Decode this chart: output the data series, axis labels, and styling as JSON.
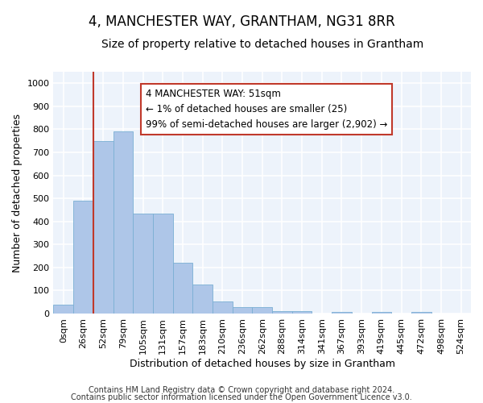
{
  "title": "4, MANCHESTER WAY, GRANTHAM, NG31 8RR",
  "subtitle": "Size of property relative to detached houses in Grantham",
  "xlabel": "Distribution of detached houses by size in Grantham",
  "ylabel": "Number of detached properties",
  "footnote1": "Contains HM Land Registry data © Crown copyright and database right 2024.",
  "footnote2": "Contains public sector information licensed under the Open Government Licence v3.0.",
  "bar_labels": [
    "0sqm",
    "26sqm",
    "52sqm",
    "79sqm",
    "105sqm",
    "131sqm",
    "157sqm",
    "183sqm",
    "210sqm",
    "236sqm",
    "262sqm",
    "288sqm",
    "314sqm",
    "341sqm",
    "367sqm",
    "393sqm",
    "419sqm",
    "445sqm",
    "472sqm",
    "498sqm",
    "524sqm"
  ],
  "bar_values": [
    40,
    490,
    750,
    790,
    435,
    435,
    220,
    125,
    52,
    27,
    28,
    10,
    10,
    0,
    8,
    0,
    6,
    0,
    6,
    0,
    0
  ],
  "bar_color": "#aec6e8",
  "bar_edgecolor": "#7aafd4",
  "ylim": [
    0,
    1050
  ],
  "yticks": [
    0,
    100,
    200,
    300,
    400,
    500,
    600,
    700,
    800,
    900,
    1000
  ],
  "property_line_color": "#c0392b",
  "annotation_text": "4 MANCHESTER WAY: 51sqm\n← 1% of detached houses are smaller (25)\n99% of semi-detached houses are larger (2,902) →",
  "annotation_box_color": "#c0392b",
  "bg_color": "#edf3fb",
  "grid_color": "#ffffff",
  "title_fontsize": 12,
  "subtitle_fontsize": 10,
  "axis_label_fontsize": 9,
  "tick_fontsize": 8,
  "annot_fontsize": 8.5,
  "footnote_fontsize": 7
}
